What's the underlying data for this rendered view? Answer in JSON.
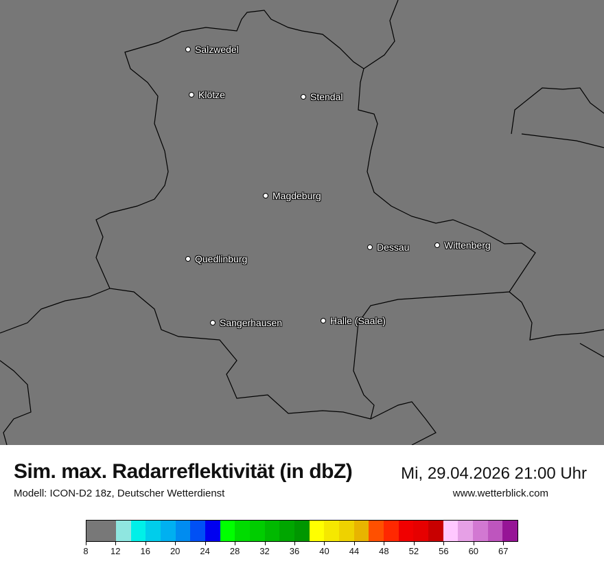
{
  "map": {
    "cities": [
      {
        "name": "Salzwedel"
      },
      {
        "name": "Klötze"
      },
      {
        "name": "Stendal"
      },
      {
        "name": "Magdeburg"
      },
      {
        "name": "Dessau"
      },
      {
        "name": "Wittenberg"
      },
      {
        "name": "Quedlinburg"
      },
      {
        "name": "Sangerhausen"
      },
      {
        "name": "Halle (Saale)"
      }
    ],
    "background_color": "#777777"
  },
  "footer": {
    "title": "Sim. max. Radarreflektivität (in dbZ)",
    "datetime": "Mi, 29.04.2026 21:00 Uhr",
    "model": "Modell: ICON-D2 18z, Deutscher Wetterdienst",
    "website": "www.wetterblick.com"
  },
  "legend": {
    "colors": [
      "#787878",
      "#8fe6e0",
      "#00f0e8",
      "#00cdeb",
      "#00b0f0",
      "#008cf0",
      "#0050f5",
      "#0000f0",
      "#00ff00",
      "#00dc00",
      "#00cd00",
      "#00b900",
      "#00a600",
      "#009600",
      "#ffff00",
      "#f5e800",
      "#eed200",
      "#e8b400",
      "#ff5000",
      "#ff2800",
      "#f00000",
      "#e60000",
      "#c80000",
      "#ffc8ff",
      "#e6a0e6",
      "#d278d2",
      "#be55be",
      "#961496"
    ],
    "tick_labels": [
      "8",
      "12",
      "16",
      "20",
      "24",
      "28",
      "32",
      "36",
      "40",
      "44",
      "48",
      "52",
      "56",
      "60",
      "67"
    ]
  }
}
